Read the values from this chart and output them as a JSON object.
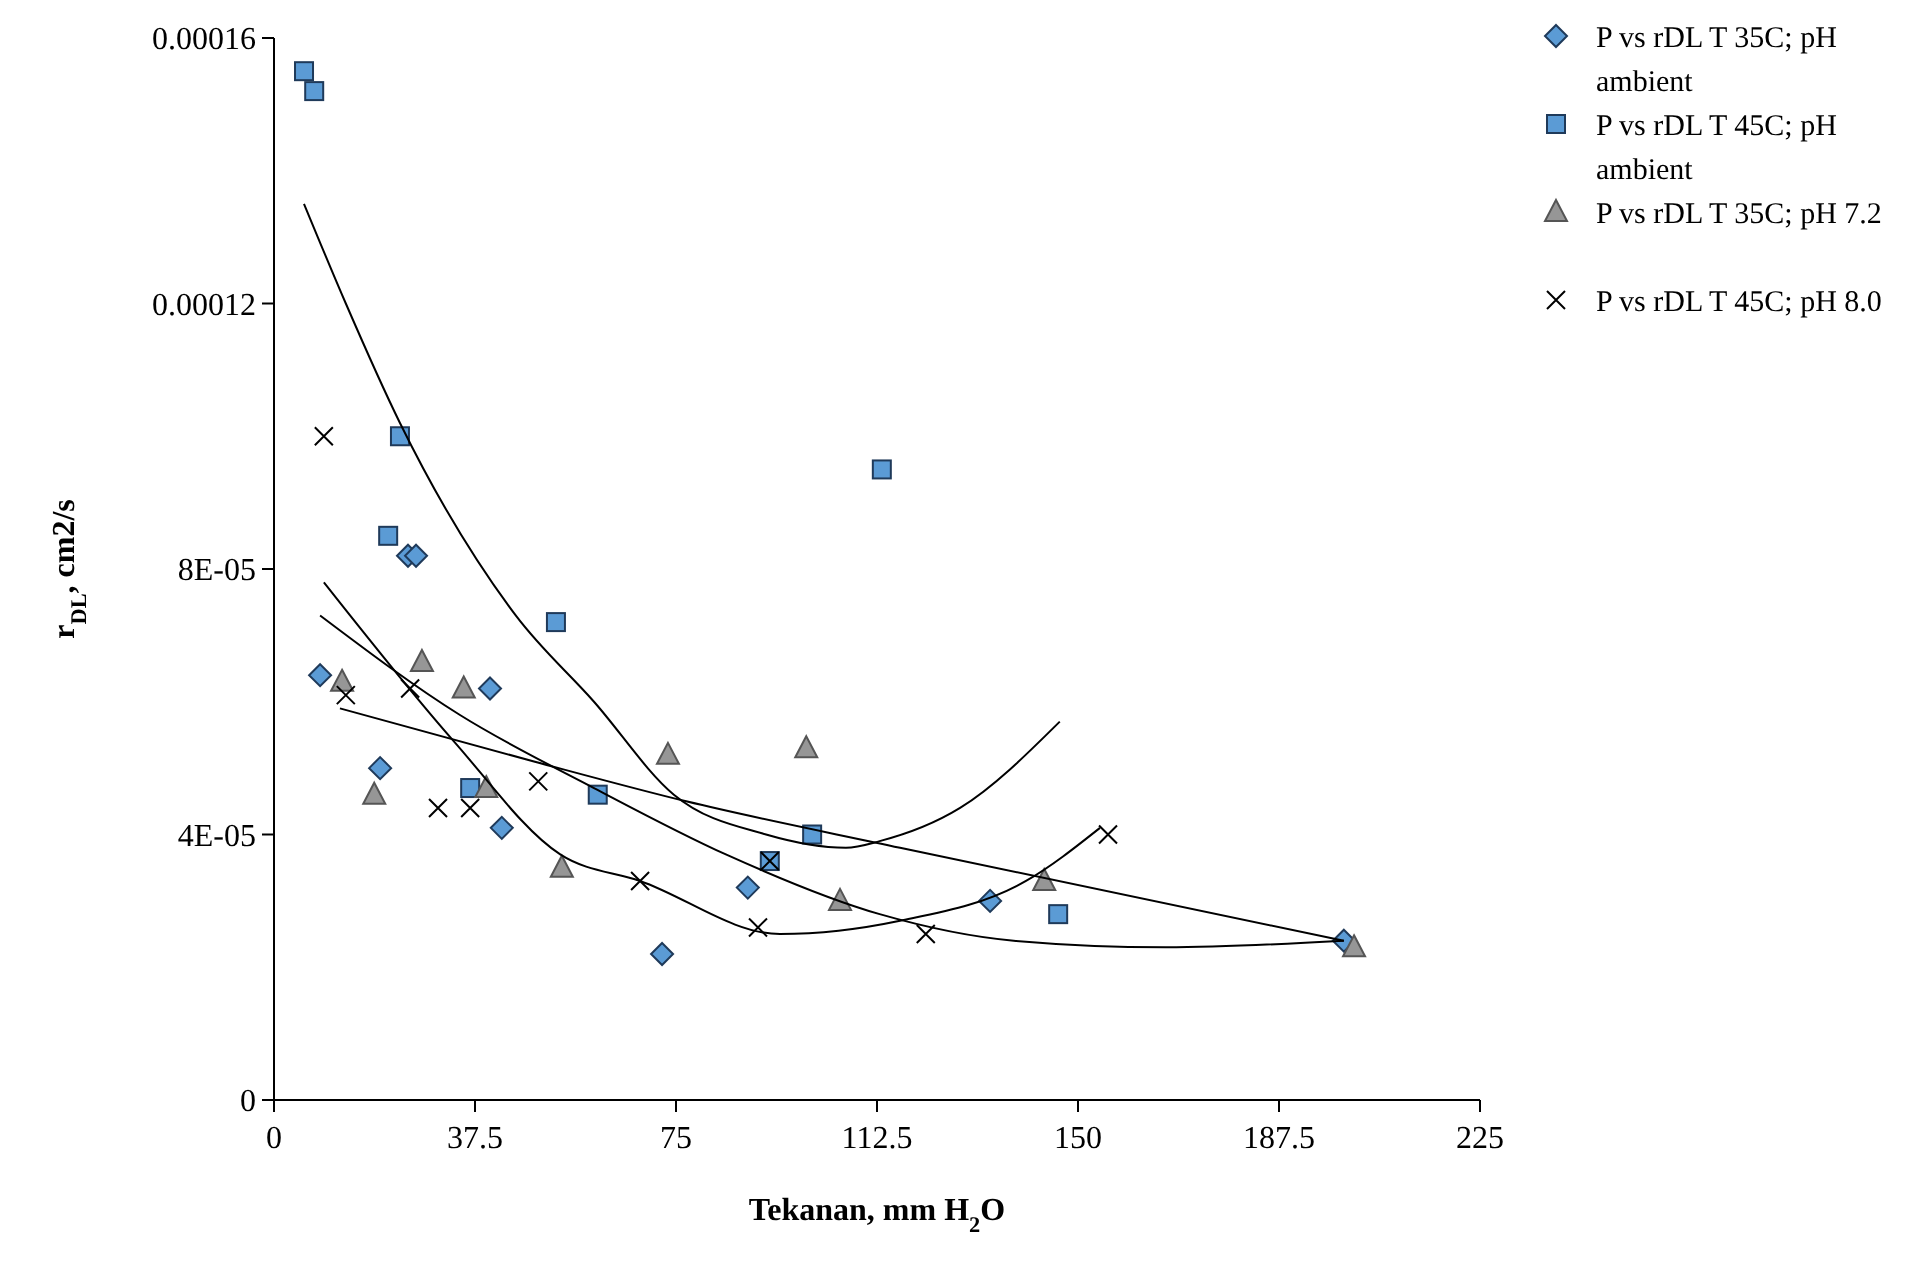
{
  "chart_data": {
    "type": "scatter",
    "xlabel": "Tekanan, mm H$_{2}$O",
    "ylabel": "r$_{DL}$, cm2/s",
    "xlim": [
      0,
      225
    ],
    "xticks": [
      0,
      37.5,
      75,
      112.5,
      150,
      187.5,
      225
    ],
    "ylim": [
      0,
      0.00016
    ],
    "yticks": [
      {
        "value": 0,
        "label": "0"
      },
      {
        "value": 4e-05,
        "label": "4E-05"
      },
      {
        "value": 8e-05,
        "label": "8E-05"
      },
      {
        "value": 0.00012,
        "label": "0.00012"
      },
      {
        "value": 0.00016,
        "label": "0.00016"
      }
    ],
    "grid": false,
    "legend": "right",
    "series": [
      {
        "name": "P vs rDL T 35C; pH ambient",
        "color": "#5b9bd5",
        "marker": "diamond",
        "x": [
          8.6,
          19.8,
          25,
          26.5,
          40.3,
          42.5,
          72.4,
          73.5,
          88.4,
          133.6,
          199.6
        ],
        "values": [
          6.4e-05,
          5e-05,
          8.2e-05,
          8.2e-05,
          6.2e-05,
          4.1e-05,
          2.2e-05,
          null,
          3.2e-05,
          3e-05,
          2.4e-05
        ]
      },
      {
        "name": "P vs rDL T 45C; pH ambient",
        "color": "#5b9bd5",
        "marker": "square",
        "x": [
          5.6,
          7.5,
          21.3,
          23.5,
          36.6,
          52.6,
          60.4,
          92.5,
          100.4,
          113.4,
          146.3
        ],
        "values": [
          0.000155,
          0.000152,
          8.5e-05,
          0.0001,
          4.7e-05,
          7.2e-05,
          4.6e-05,
          3.6e-05,
          4e-05,
          9.5e-05,
          2.8e-05
        ]
      },
      {
        "name": "P vs rDL T 35C; pH 7.2",
        "color": "#969696",
        "marker": "triangle",
        "x": [
          12.7,
          18.7,
          27.6,
          35.4,
          39.6,
          53.7,
          73.5,
          99.3,
          105.6,
          143.7,
          201.5
        ],
        "values": [
          6.3e-05,
          4.6e-05,
          6.6e-05,
          6.2e-05,
          4.7e-05,
          3.5e-05,
          5.2e-05,
          5.3e-05,
          3e-05,
          3.3e-05,
          2.3e-05
        ]
      },
      {
        "name": "P vs rDL T 45C; pH 8.0",
        "color": "#000000",
        "marker": "cross",
        "x": [
          9.3,
          13.4,
          25.4,
          30.6,
          36.6,
          49.3,
          68.3,
          90.3,
          92.5,
          121.6,
          155.6
        ],
        "values": [
          0.0001,
          6.1e-05,
          6.2e-05,
          4.4e-05,
          4.4e-05,
          4.8e-05,
          3.3e-05,
          2.6e-05,
          3.6e-05,
          2.5e-05,
          4e-05
        ]
      },
      {
        "type": "line",
        "color": "#000000",
        "marker": "none",
        "x": [
          8.6,
          34.7,
          59.7,
          84.3,
          113,
          138,
          166.4,
          199.6
        ],
        "values": [
          7.3e-05,
          5.8e-05,
          4.7e-05,
          3.7e-05,
          2.8e-05,
          2.4e-05,
          2.3e-05,
          2.4e-05
        ]
      },
      {
        "type": "line",
        "color": "#000000",
        "marker": "none",
        "x": [
          5.6,
          13.4,
          23.5,
          45.1,
          59.7,
          74.6,
          91.8,
          106.7,
          113,
          128,
          146.6
        ],
        "values": [
          0.000135,
          0.00012,
          0.000102,
          7.3e-05,
          6e-05,
          4.6e-05,
          4e-05,
          3.8e-05,
          3.9e-05,
          4.4e-05,
          5.7e-05
        ]
      },
      {
        "type": "line",
        "color": "#000000",
        "marker": "none",
        "x": [
          12.3,
          48.5,
          76.9,
          116.8,
          199.6
        ],
        "values": [
          5.9e-05,
          5.1e-05,
          4.5e-05,
          3.8e-05,
          2.4e-05
        ]
      },
      {
        "type": "line",
        "color": "#000000",
        "marker": "none",
        "x": [
          9.3,
          33.6,
          53.4,
          68.3,
          94.4,
          116.8,
          140.3,
          154.1
        ],
        "values": [
          7.8e-05,
          5.4e-05,
          3.7e-05,
          3.3e-05,
          2.5e-05,
          2.7e-05,
          3.3e-05,
          4.1e-05
        ]
      }
    ]
  }
}
